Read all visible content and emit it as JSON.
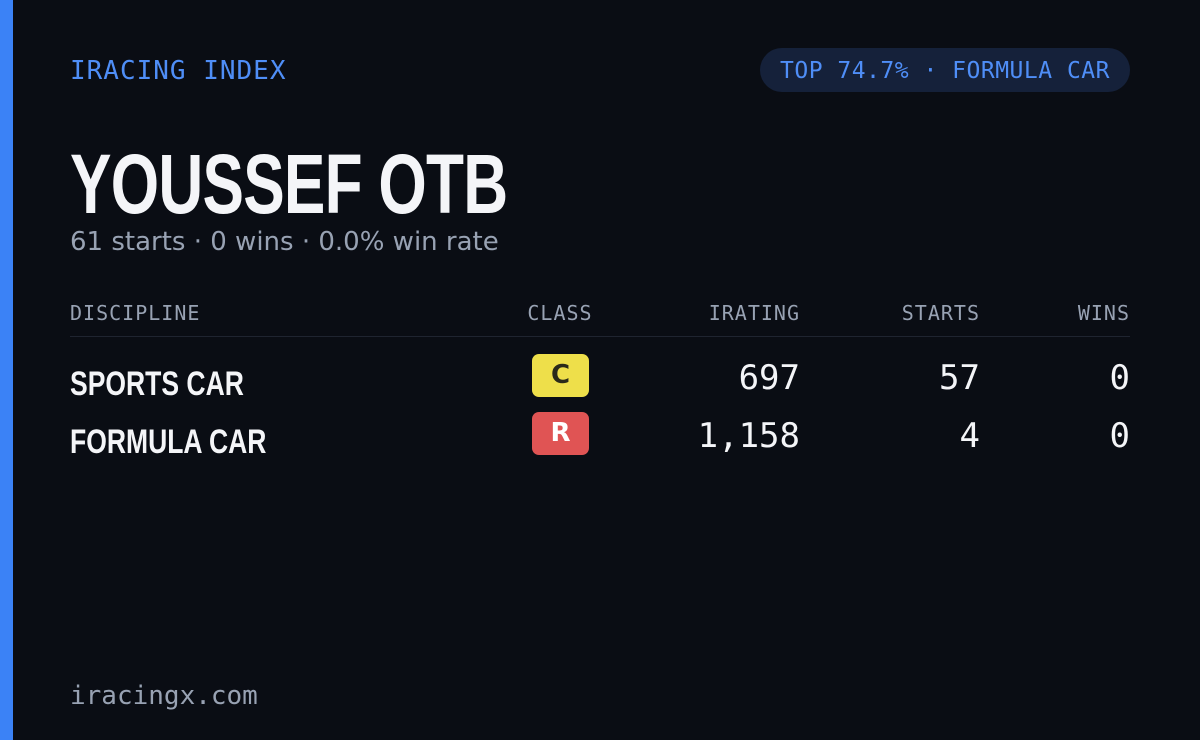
{
  "header": {
    "brand": "IRACING INDEX",
    "badge": "TOP 74.7% · FORMULA CAR"
  },
  "driver": {
    "name": "YOUSSEF OTB",
    "summary": "61 starts · 0 wins · 0.0% win rate"
  },
  "table": {
    "columns": [
      "DISCIPLINE",
      "CLASS",
      "IRATING",
      "STARTS",
      "WINS"
    ],
    "rows": [
      [
        "SPORTS CAR",
        "C",
        "697",
        "57",
        "0"
      ],
      [
        "FORMULA CAR",
        "R",
        "1,158",
        "4",
        "0"
      ]
    ]
  },
  "footer": {
    "site": "iracingx.com"
  }
}
